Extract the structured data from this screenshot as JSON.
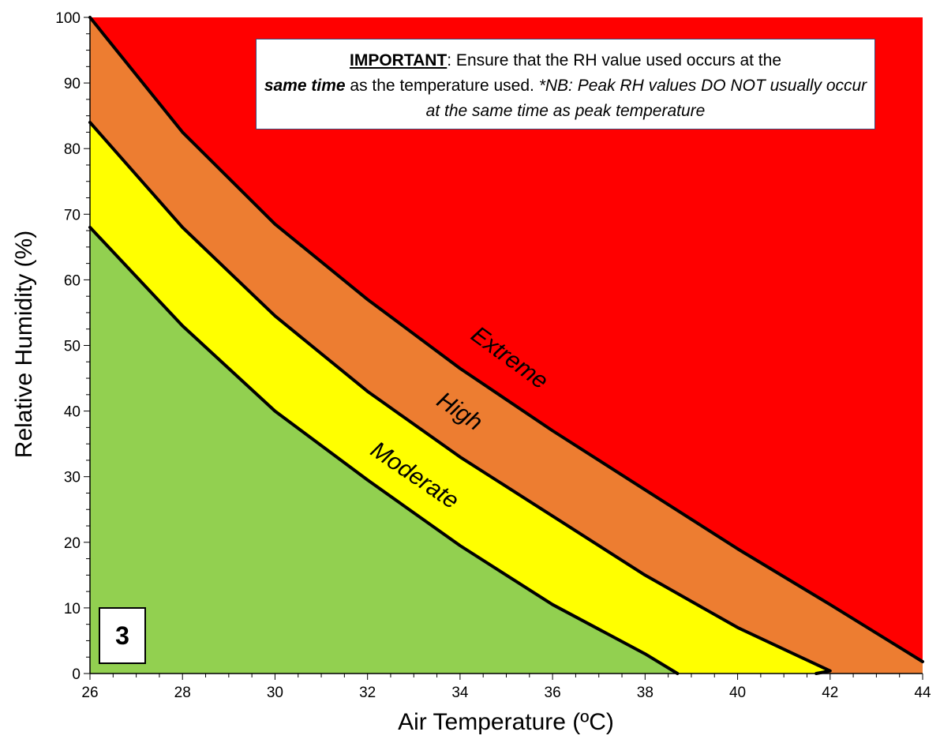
{
  "chart_data": {
    "type": "area",
    "xlabel": "Air Temperature (ºC)",
    "ylabel": "Relative Humidity (%)",
    "xlim": [
      26,
      44
    ],
    "ylim": [
      0,
      100
    ],
    "x_ticks": [
      26,
      28,
      30,
      32,
      34,
      36,
      38,
      40,
      42,
      44
    ],
    "y_ticks": [
      0,
      10,
      20,
      30,
      40,
      50,
      60,
      70,
      80,
      90,
      100
    ],
    "grid": false,
    "zones": [
      {
        "name": "Extreme",
        "color": "#ff0000"
      },
      {
        "name": "High",
        "color": "#ed7d31"
      },
      {
        "name": "Moderate",
        "color": "#ffff00"
      },
      {
        "name": "",
        "color": "#92d050"
      }
    ],
    "boundaries": [
      {
        "upper_zone": "Extreme",
        "x": [
          26,
          28,
          30,
          32,
          34,
          36,
          38,
          40,
          42,
          44
        ],
        "y": [
          100,
          82.5,
          68.5,
          57,
          46.5,
          37,
          28,
          19,
          10.5,
          1.8
        ]
      },
      {
        "upper_zone": "High",
        "x": [
          26,
          28,
          30,
          32,
          34,
          36,
          38,
          40,
          42,
          41.7
        ],
        "y": [
          84,
          68,
          54.5,
          43,
          33,
          24,
          15,
          7,
          0.4,
          0
        ]
      },
      {
        "upper_zone": "Moderate",
        "x": [
          26,
          28,
          30,
          32,
          34,
          36,
          38,
          38.7
        ],
        "y": [
          68,
          53,
          40,
          29.5,
          19.5,
          10.5,
          3,
          0
        ]
      }
    ],
    "annotations": {
      "note_prefix": "IMPORTANT",
      "note_rest_1": ": Ensure that the RH value used occurs at the",
      "note_bold_italic": "same time",
      "note_rest_2": " as the temperature used. ",
      "note_italic": "*NB: Peak RH values DO NOT usually occur at the same time as peak temperature",
      "panel_number": "3"
    }
  }
}
